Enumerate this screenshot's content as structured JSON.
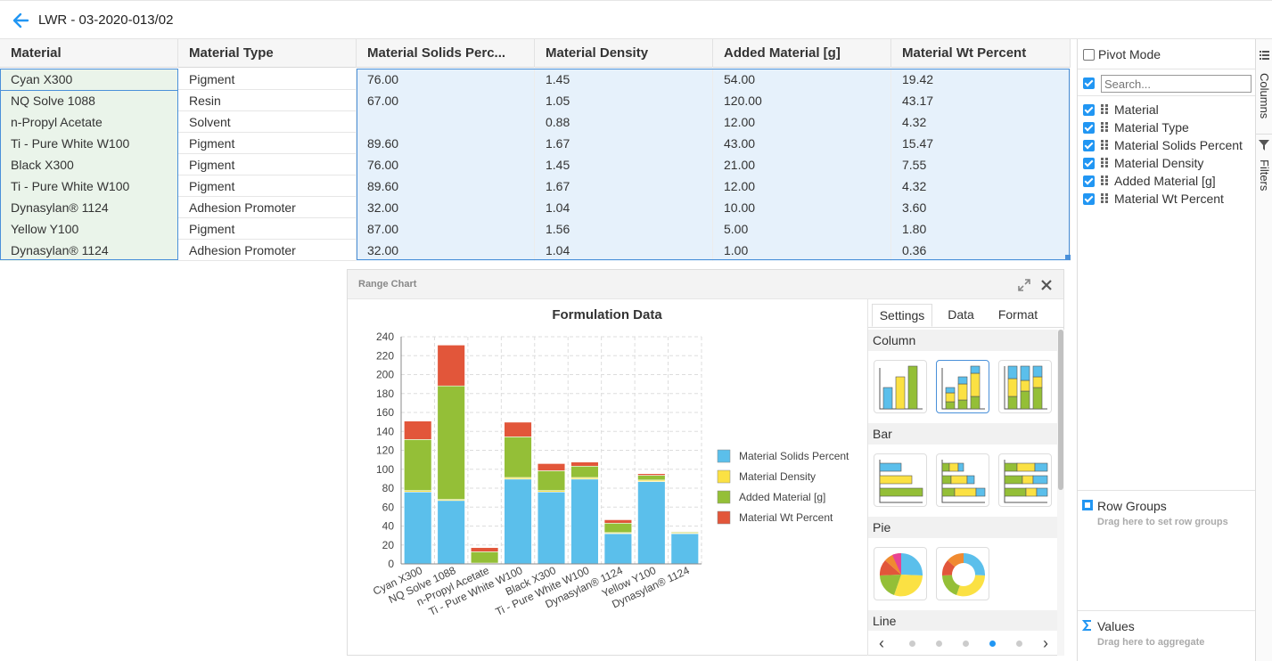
{
  "header": {
    "title": "LWR - 03-2020-013/02"
  },
  "grid": {
    "columns": [
      "Material",
      "Material Type",
      "Material Solids Perc...",
      "Material Density",
      "Added Material [g]",
      "Material Wt Percent"
    ],
    "rows": [
      [
        "Cyan X300",
        "Pigment",
        "76.00",
        "1.45",
        "54.00",
        "19.42"
      ],
      [
        "NQ Solve 1088",
        "Resin",
        "67.00",
        "1.05",
        "120.00",
        "43.17"
      ],
      [
        "n-Propyl Acetate",
        "Solvent",
        "",
        "0.88",
        "12.00",
        "4.32"
      ],
      [
        "Ti - Pure White W100",
        "Pigment",
        "89.60",
        "1.67",
        "43.00",
        "15.47"
      ],
      [
        "Black X300",
        "Pigment",
        "76.00",
        "1.45",
        "21.00",
        "7.55"
      ],
      [
        "Ti - Pure White W100",
        "Pigment",
        "89.60",
        "1.67",
        "12.00",
        "4.32"
      ],
      [
        "Dynasylan® 1124",
        "Adhesion Promoter",
        "32.00",
        "1.04",
        "10.00",
        "3.60"
      ],
      [
        "Yellow Y100",
        "Pigment",
        "87.00",
        "1.56",
        "5.00",
        "1.80"
      ],
      [
        "Dynasylan® 1124",
        "Adhesion Promoter",
        "32.00",
        "1.04",
        "1.00",
        "0.36"
      ]
    ]
  },
  "side_panel": {
    "pivot_mode_label": "Pivot Mode",
    "search_placeholder": "Search...",
    "columns": [
      "Material",
      "Material Type",
      "Material Solids Percent",
      "Material Density",
      "Added Material [g]",
      "Material Wt Percent"
    ],
    "row_groups_title": "Row Groups",
    "row_groups_hint": "Drag here to set row groups",
    "values_title": "Values",
    "values_hint": "Drag here to aggregate",
    "tab_columns": "Columns",
    "tab_filters": "Filters"
  },
  "chart_window": {
    "title": "Range Chart",
    "tabs": [
      "Settings",
      "Data",
      "Format"
    ],
    "sections": [
      "Column",
      "Bar",
      "Pie",
      "Line"
    ],
    "active_page": 4,
    "page_count": 5
  },
  "chart_data": {
    "type": "bar",
    "stacked": true,
    "title": "Formulation Data",
    "xlabel": "",
    "ylabel": "",
    "ylim": [
      0,
      240
    ],
    "yticks": [
      0,
      20,
      40,
      60,
      80,
      100,
      120,
      140,
      160,
      180,
      200,
      220,
      240
    ],
    "grid": true,
    "legend_position": "right",
    "categories": [
      "Cyan X300",
      "NQ Solve 1088",
      "n-Propyl Acetate",
      "Ti - Pure White W100",
      "Black X300",
      "Ti - Pure White W100",
      "Dynasylan® 1124",
      "Yellow Y100",
      "Dynasylan® 1124"
    ],
    "series": [
      {
        "name": "Material Solids Percent",
        "color": "#5bbfeb",
        "values": [
          76,
          67,
          0,
          89.6,
          76,
          89.6,
          32,
          87,
          32
        ]
      },
      {
        "name": "Material Density",
        "color": "#fbe143",
        "values": [
          1.45,
          1.05,
          0.88,
          1.67,
          1.45,
          1.67,
          1.04,
          1.56,
          1.04
        ]
      },
      {
        "name": "Added Material [g]",
        "color": "#94bf37",
        "values": [
          54,
          120,
          12,
          43,
          21,
          12,
          10,
          5,
          1
        ]
      },
      {
        "name": "Material Wt Percent",
        "color": "#e2563a",
        "values": [
          19.42,
          43.17,
          4.32,
          15.47,
          7.55,
          4.32,
          3.6,
          1.8,
          0.36
        ]
      }
    ]
  }
}
